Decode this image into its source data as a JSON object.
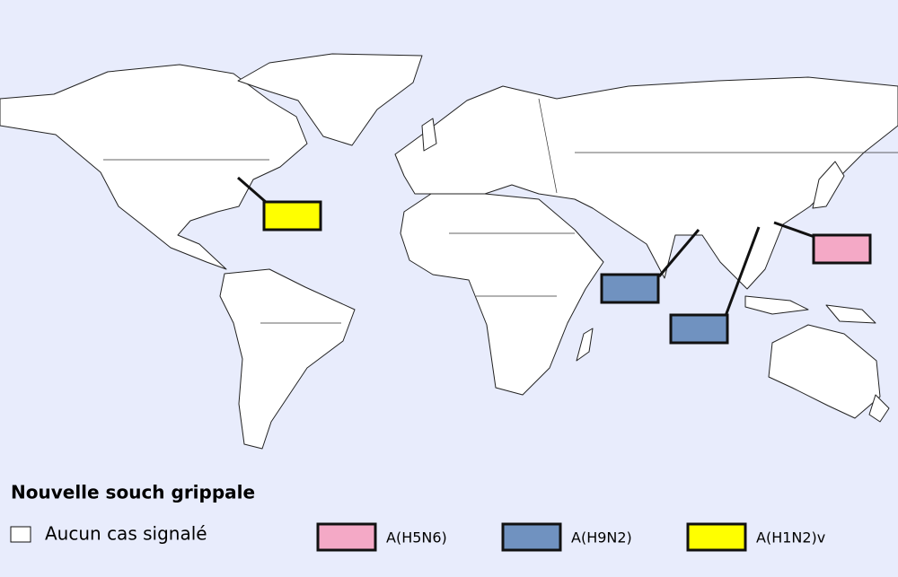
{
  "legend": {
    "title": "Nouvelle souch grippale",
    "items": [
      {
        "label": "Aucun cas signalé",
        "color": "#ffffff"
      },
      {
        "label": "A(H5N6)",
        "color": "#f4a9c6"
      },
      {
        "label": "A(H9N2)",
        "color": "#7092c0"
      },
      {
        "label": "A(H1N2)v",
        "color": "#ffff00"
      }
    ]
  }
}
